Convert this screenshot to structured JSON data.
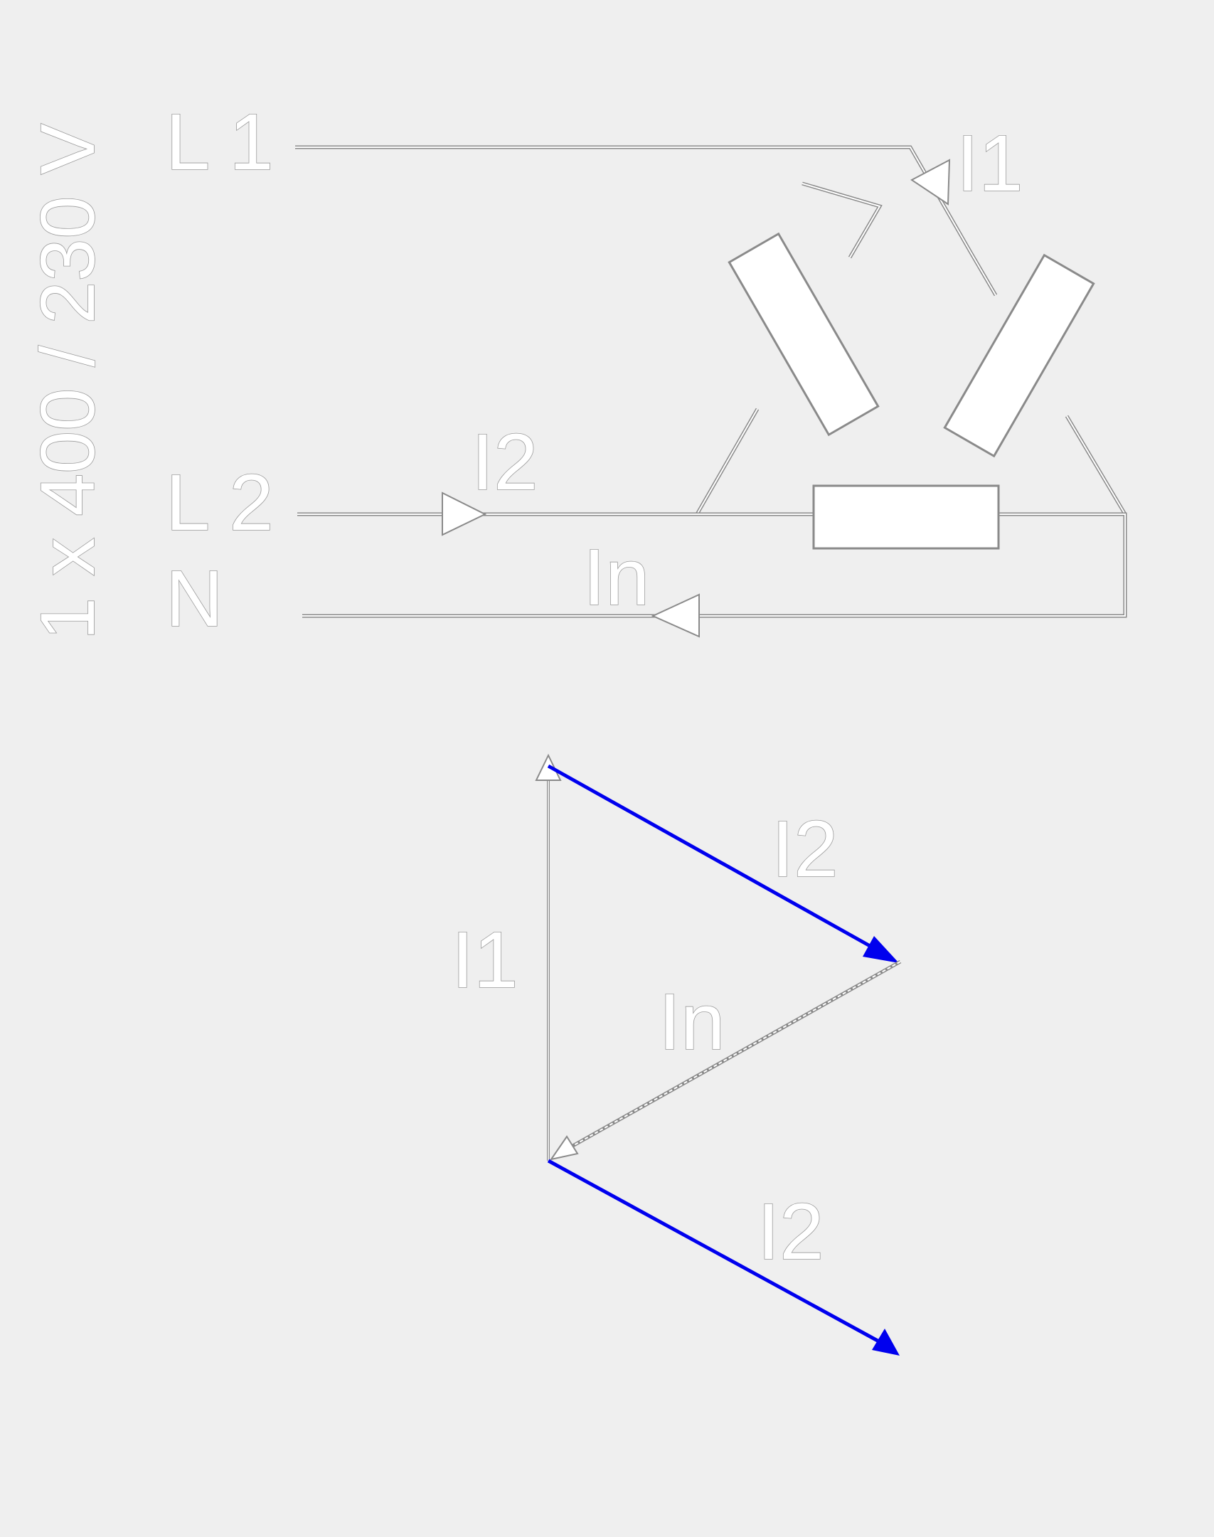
{
  "supply_label": "1 x 400 / 230 V",
  "circuit": {
    "line_1": "L 1",
    "line_2": "L 2",
    "neutral": "N",
    "current_1": "I1",
    "current_2": "I2",
    "current_n": "In"
  },
  "phasor": {
    "i2_upper": "I2",
    "i1": "I1",
    "in": "In",
    "i2_lower": "I2",
    "accent_color": "#0000ee"
  }
}
